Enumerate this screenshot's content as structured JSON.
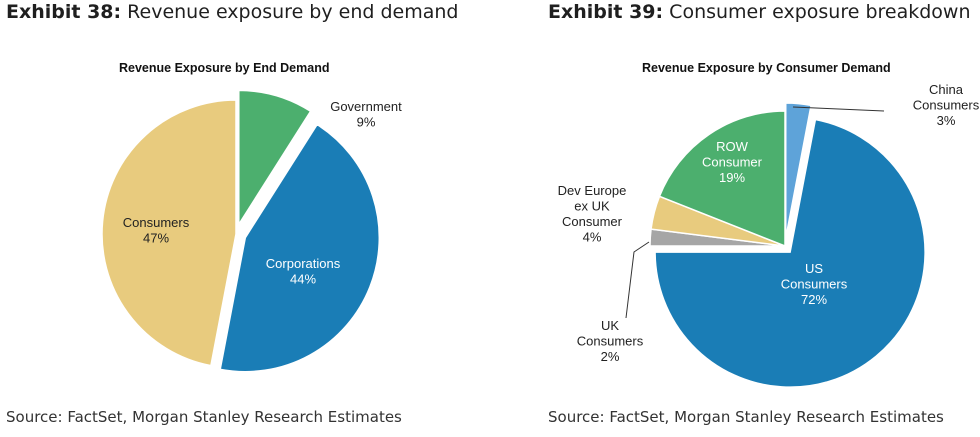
{
  "exhibits": [
    {
      "number": "Exhibit 38:",
      "caption": "Revenue exposure by end demand",
      "source": "Source: FactSet, Morgan Stanley Research Estimates"
    },
    {
      "number": "Exhibit 39:",
      "caption": "Consumer exposure breakdown",
      "source": "Source: FactSet, Morgan Stanley Research Estimates"
    }
  ],
  "chart_data": [
    {
      "type": "pie",
      "title": "Revenue Exposure by End Demand",
      "slices": [
        {
          "name": "Government",
          "value": 9,
          "label": "9%",
          "color": "#4caf6e"
        },
        {
          "name": "Corporations",
          "value": 44,
          "label": "44%",
          "color": "#1a7db6"
        },
        {
          "name": "Consumers",
          "value": 47,
          "label": "47%",
          "color": "#e8cb7e"
        }
      ],
      "exploded": true,
      "legend": "none"
    },
    {
      "type": "pie",
      "title": "Revenue Exposure by Consumer Demand",
      "slices": [
        {
          "name": "China Consumers",
          "value": 3,
          "label": "3%",
          "color": "#5ea3d9"
        },
        {
          "name": "US Consumers",
          "value": 72,
          "label": "72%",
          "color": "#1a7db6"
        },
        {
          "name": "UK Consumers",
          "value": 2,
          "label": "2%",
          "color": "#a6a6a6"
        },
        {
          "name": "Dev Europe ex UK Consumer",
          "value": 4,
          "label": "4%",
          "color": "#e8cb7e"
        },
        {
          "name": "ROW Consumer",
          "value": 19,
          "label": "19%",
          "color": "#4caf6e"
        }
      ],
      "exploded": true,
      "legend": "none"
    }
  ]
}
